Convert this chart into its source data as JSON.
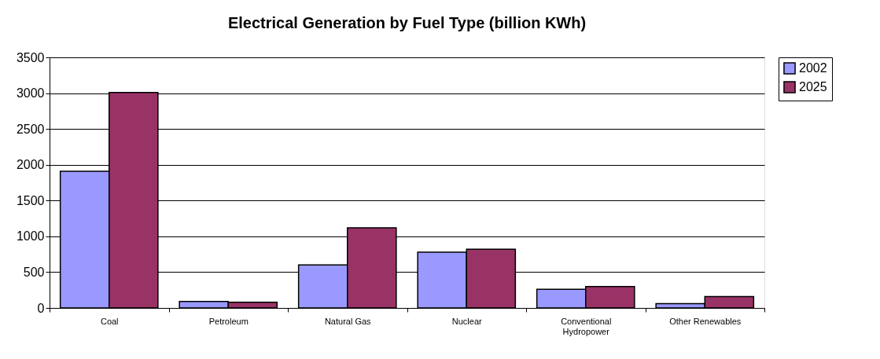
{
  "chart_data": {
    "type": "bar",
    "title": "Electrical Generation by Fuel Type (billion KWh)",
    "categories": [
      "Coal",
      "Petroleum",
      "Natural Gas",
      "Nuclear",
      "Conventional Hydropower",
      "Other Renewables"
    ],
    "series": [
      {
        "name": "2002",
        "color": "#9999ff",
        "values": [
          1910,
          90,
          600,
          780,
          260,
          60
        ]
      },
      {
        "name": "2025",
        "color": "#993366",
        "values": [
          3010,
          80,
          1120,
          820,
          300,
          160
        ]
      }
    ],
    "ylim": [
      0,
      3500
    ],
    "yticks": [
      0,
      500,
      1000,
      1500,
      2000,
      2500,
      3000,
      3500
    ],
    "grid": "y",
    "legend": "right"
  }
}
